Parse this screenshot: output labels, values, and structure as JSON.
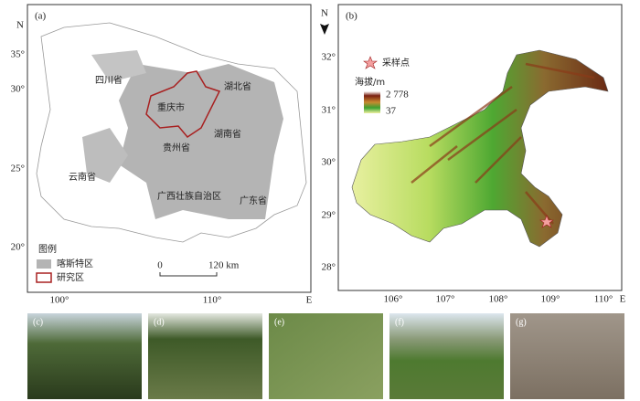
{
  "panel_a": {
    "label": "(a)",
    "north": "N",
    "y_ticks": [
      "35°",
      "30°",
      "25°",
      "20°"
    ],
    "x_ticks": [
      "100°",
      "110°"
    ],
    "x_axis": "E",
    "regions": [
      "四川省",
      "湖北省",
      "重庆市",
      "贵州省",
      "湖南省",
      "云南省",
      "广西壮族自治区",
      "广东省"
    ],
    "legend": {
      "title": "图例",
      "items": [
        "喀斯特区",
        "研究区"
      ]
    },
    "scale_bar": [
      "0",
      "120 km"
    ]
  },
  "panel_b": {
    "label": "(b)",
    "north": "N",
    "y_ticks": [
      "32°",
      "31°",
      "30°",
      "29°",
      "28°"
    ],
    "x_ticks": [
      "106°",
      "107°",
      "108°",
      "109°",
      "110°"
    ],
    "x_axis": "E",
    "legend": {
      "sample": "采样点",
      "elevation_title": "海拔/m",
      "elevation_max": "2 778",
      "elevation_min": "37"
    }
  },
  "photos": [
    "(c)",
    "(d)",
    "(e)",
    "(f)",
    "(g)"
  ]
}
